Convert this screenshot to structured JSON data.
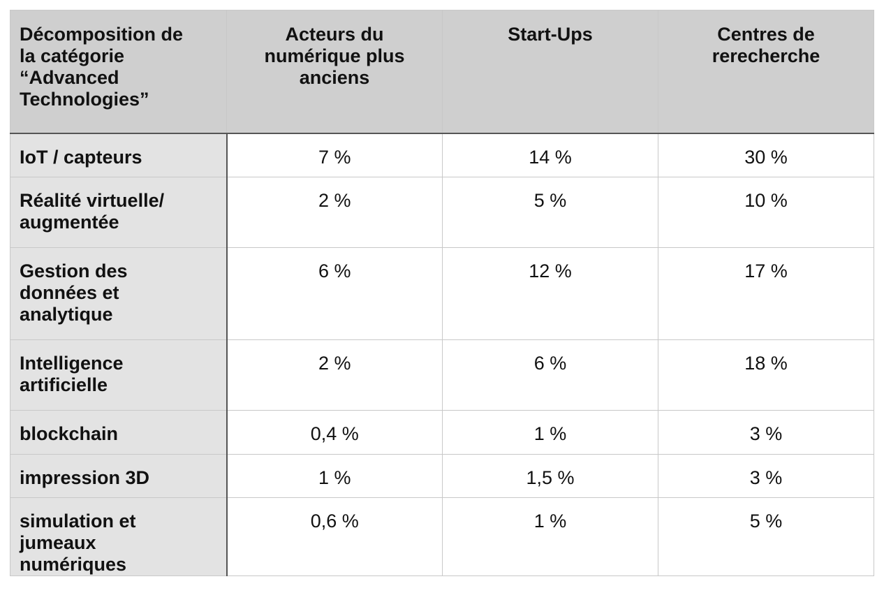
{
  "chart_data": {
    "type": "table",
    "corner_header": "Décomposition de\nla catégorie\n“Advanced\nTechnologies”",
    "columns": [
      "Acteurs du\nnumérique plus\nanciens",
      "Start-Ups",
      "Centres de\nrerecherche"
    ],
    "rows": [
      {
        "label": "IoT / capteurs",
        "values": [
          "7 %",
          "14 %",
          "30 %"
        ]
      },
      {
        "label": "Réalité virtuelle/\naugmentée",
        "values": [
          "2 %",
          "5 %",
          "10 %"
        ]
      },
      {
        "label": "Gestion des\ndonnées et\nanalytique",
        "values": [
          "6 %",
          "12 %",
          "17 %"
        ]
      },
      {
        "label": "Intelligence\nartificielle",
        "values": [
          "2 %",
          "6 %",
          "18 %"
        ]
      },
      {
        "label": "blockchain",
        "values": [
          "0,4 %",
          "1 %",
          "3 %"
        ]
      },
      {
        "label": "impression 3D",
        "values": [
          "1 %",
          "1,5 %",
          "3 %"
        ]
      },
      {
        "label": "simulation et\njumeaux\nnumériques",
        "values": [
          "0,6 %",
          "1 %",
          "5 %"
        ]
      }
    ],
    "colors": {
      "header_bg": "#cfcfcf",
      "row_header_bg": "#e3e3e3",
      "cell_bg": "#ffffff",
      "grid": "#c8c8c8",
      "separator": "#555555"
    }
  }
}
